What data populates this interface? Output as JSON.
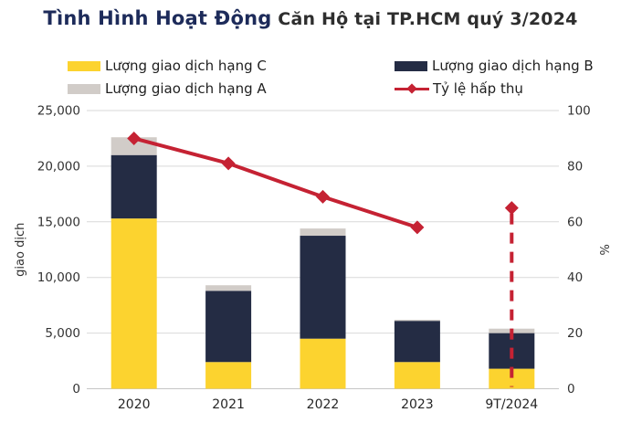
{
  "title": {
    "part1": "Tình Hình Hoạt Động",
    "part2": " Căn Hộ tại TP.HCM quý 3/2024"
  },
  "colors": {
    "class_c": "#FCD32F",
    "class_b": "#242C44",
    "class_a": "#D1CCC8",
    "absorption": "#C52233",
    "grid": "#D9D9D9",
    "baseline": "#C6C6C6",
    "title_accent": "#1D2B5A",
    "title_rest": "#2E2E2E",
    "axis_text": "#333333",
    "xlabel_text": "#262626"
  },
  "legend": {
    "items": [
      {
        "id": "class_c",
        "label": "Lượng giao dịch hạng C",
        "swatch": "bar",
        "color_key": "class_c"
      },
      {
        "id": "class_a",
        "label": "Lượng giao dịch hạng A",
        "swatch": "bar",
        "color_key": "class_a"
      },
      {
        "id": "class_b",
        "label": "Lượng giao dịch hạng B",
        "swatch": "bar",
        "color_key": "class_b"
      },
      {
        "id": "absorption",
        "label": "Tỷ lệ hấp thụ",
        "swatch": "line",
        "color_key": "absorption"
      }
    ]
  },
  "chart_data": {
    "type": "stacked-bar+line",
    "categories": [
      "2020",
      "2021",
      "2022",
      "2023",
      "9T/2024"
    ],
    "series": [
      {
        "name": "Lượng giao dịch hạng C",
        "type": "bar",
        "axis": "left",
        "color_key": "class_c",
        "values": [
          15300,
          2400,
          4500,
          2400,
          1800
        ]
      },
      {
        "name": "Lượng giao dịch hạng B",
        "type": "bar",
        "axis": "left",
        "color_key": "class_b",
        "values": [
          5700,
          6400,
          9250,
          3700,
          3200
        ]
      },
      {
        "name": "Lượng giao dịch hạng A",
        "type": "bar",
        "axis": "left",
        "color_key": "class_a",
        "values": [
          1600,
          500,
          650,
          100,
          400
        ]
      },
      {
        "name": "Tỷ lệ hấp thụ",
        "type": "line",
        "axis": "right",
        "color_key": "absorption",
        "values": [
          90,
          81,
          69,
          58,
          65
        ],
        "solid_until_index": 3,
        "detached_last_point": true,
        "dashed_drop_at_index": 4
      }
    ],
    "left_axis": {
      "label": "giao dịch",
      "min": 0,
      "max": 25000,
      "tick_labels": [
        "0",
        "5,000",
        "10,000",
        "15,000",
        "20,000",
        "25,000"
      ],
      "tick_values": [
        0,
        5000,
        10000,
        15000,
        20000,
        25000
      ]
    },
    "right_axis": {
      "label": "%",
      "min": 0,
      "max": 100,
      "tick_labels": [
        "0",
        "20",
        "40",
        "60",
        "80",
        "100"
      ],
      "tick_values": [
        0,
        20,
        40,
        60,
        80,
        100
      ]
    },
    "grid": "horizontal",
    "legend_position": "top"
  }
}
